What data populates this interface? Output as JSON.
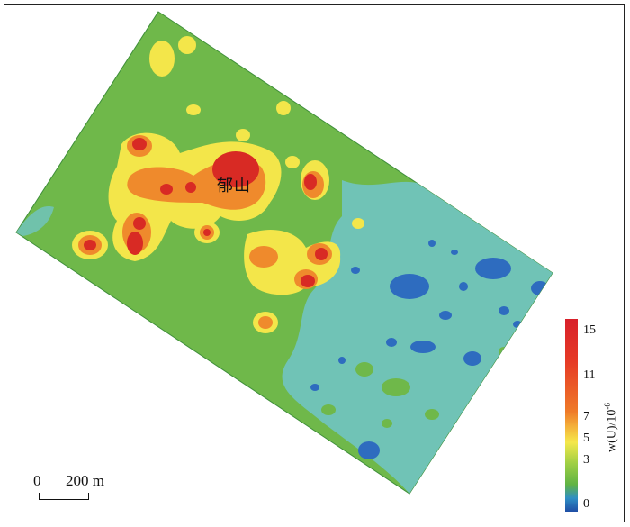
{
  "map": {
    "place_label": "郁山",
    "colors": {
      "background_field": "#6fb84a",
      "low_zone": "#6cc0b8",
      "very_low": "#2f6fc0",
      "mid": "#f5e84a",
      "high": "#ef7a28",
      "peak": "#d8202a"
    }
  },
  "scale_bar": {
    "zero_label": "0",
    "distance_label": "200 m"
  },
  "legend": {
    "ticks": [
      "15",
      "11",
      "7",
      "5",
      "3",
      "0"
    ],
    "unit_prefix": "w(U)/10",
    "unit_exponent": "-6"
  }
}
